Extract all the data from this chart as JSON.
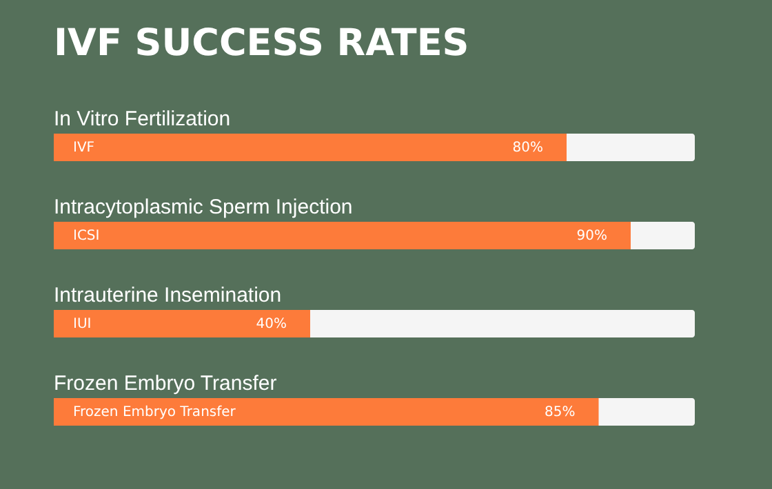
{
  "chart_data": {
    "type": "bar",
    "orientation": "horizontal",
    "title": "IVF SUCCESS RATES",
    "categories": [
      "In Vitro Fertilization",
      "Intracytoplasmic Sperm Injection",
      "Intrauterine Insemination",
      "Frozen Embryo Transfer"
    ],
    "values": [
      80,
      90,
      40,
      85
    ],
    "value_labels": [
      "80%",
      "90%",
      "40%",
      "85%"
    ],
    "color": "#fd7b3a",
    "xlim": [
      0,
      100
    ],
    "annotations": [
      {
        "text": "IVF",
        "y": "In Vitro Fertilization"
      },
      {
        "text": "ICSI",
        "y": "Intracytoplasmic Sperm Injection"
      },
      {
        "text": "IUI",
        "y": "Intrauterine Insemination"
      },
      {
        "text": "Frozen Embryo Transfer",
        "y": "Frozen Embryo Transfer"
      }
    ]
  }
}
